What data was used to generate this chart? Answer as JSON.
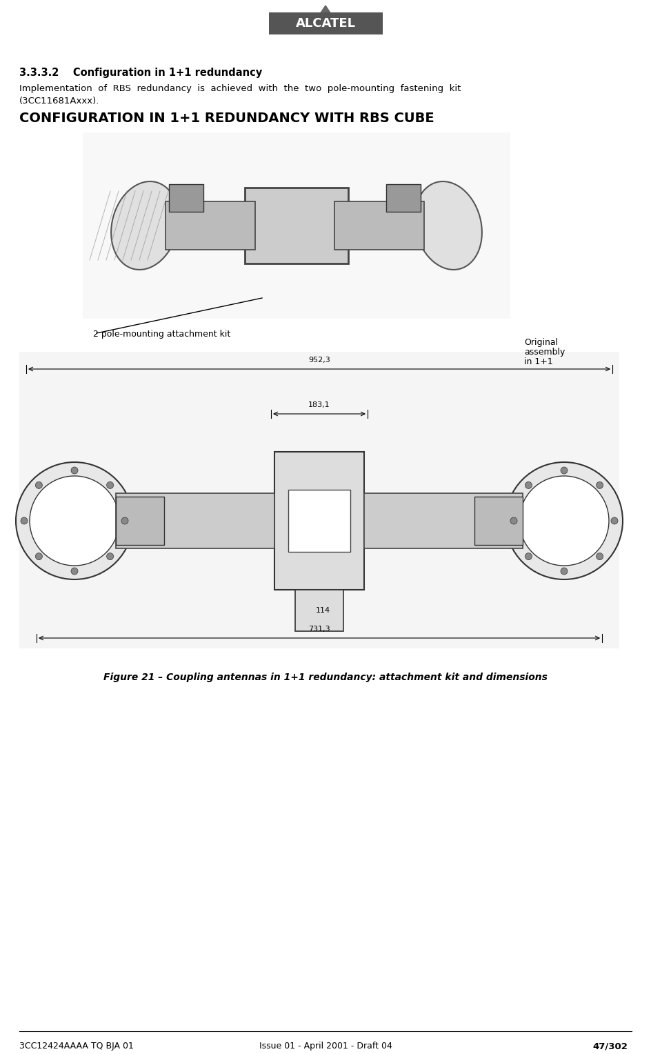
{
  "page_width": 9.44,
  "page_height": 15.28,
  "bg_color": "#ffffff",
  "logo_text": "ALCATEL",
  "logo_bg": "#555555",
  "logo_text_color": "#ffffff",
  "section_number": "3.3.3.2",
  "section_title": "Configuration in 1+1 redundancy",
  "body_text_line1": "Implementation  of  RBS  redundancy  is  achieved  with  the  two  pole-mounting  fastening  kit",
  "body_text_line2": "(3CC11681Axxx).",
  "config_title": "CONFIGURATION IN 1+1 REDUNDANCY WITH RBS CUBE",
  "label_pole_mounting": "2 pole-mounting attachment kit",
  "label_original_line1": "Original",
  "label_original_line2": "assembly",
  "label_original_line3": "in 1+1",
  "dim_952": "952,3",
  "dim_183": "183,1",
  "dim_114": "114",
  "dim_731": "731,3",
  "figure_caption": "Figure 21 – Coupling antennas in 1+1 redundancy: attachment kit and dimensions",
  "footer_left": "3CC12424AAAA TQ BJA 01",
  "footer_center": "Issue 01 - April 2001 - Draft 04",
  "footer_right": "47/302",
  "footer_bold_part": "47"
}
